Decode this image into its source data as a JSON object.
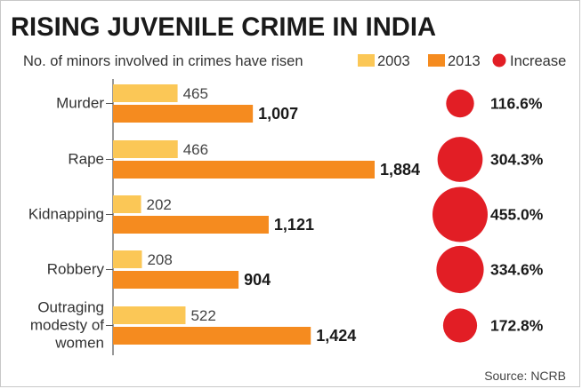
{
  "chart_data": {
    "type": "bar",
    "title": "RISING JUVENILE CRIME IN INDIA",
    "subtitle": "No. of minors involved in crimes have risen",
    "categories": [
      [
        "Murder"
      ],
      [
        "Rape"
      ],
      [
        "Kidnapping"
      ],
      [
        "Robbery"
      ],
      [
        "Outraging",
        "modesty of",
        "women"
      ]
    ],
    "series": [
      {
        "name": "2003",
        "color": "#fbc756",
        "values": [
          465,
          466,
          202,
          208,
          522
        ],
        "labels": [
          "465",
          "466",
          "202",
          "208",
          "522"
        ]
      },
      {
        "name": "2013",
        "color": "#f58b1f",
        "values": [
          1007,
          1884,
          1121,
          904,
          1424
        ],
        "labels": [
          "1,007",
          "1,884",
          "1,121",
          "904",
          "1,424"
        ]
      }
    ],
    "increase": {
      "name": "Increase",
      "color": "#e21e25",
      "values": [
        116.6,
        304.3,
        455.0,
        334.6,
        172.8
      ],
      "labels": [
        "116.6%",
        "304.3%",
        "455.0%",
        "334.6%",
        "172.8%"
      ]
    },
    "source": "Source: NCRB",
    "xlabel": "",
    "ylabel": "",
    "xlim": [
      0,
      1884
    ],
    "grid": false,
    "legend_position": "top-right"
  }
}
